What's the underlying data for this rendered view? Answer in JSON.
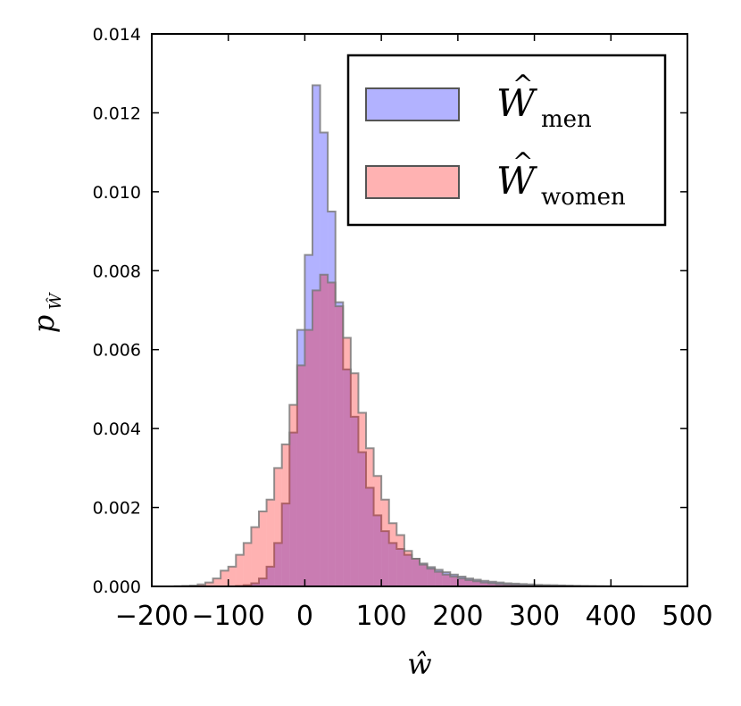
{
  "chart_data": {
    "type": "histogram",
    "title": "",
    "xlabel": "ŵ",
    "ylabel": "p",
    "ylabel_subscript": "Ŵ",
    "xlim": [
      -200,
      500
    ],
    "ylim": [
      0,
      0.014
    ],
    "x_ticks": [
      -200,
      -100,
      0,
      100,
      200,
      300,
      400,
      500
    ],
    "x_tick_labels": [
      "−200",
      "−100",
      "0",
      "100",
      "200",
      "300",
      "400",
      "500"
    ],
    "y_ticks": [
      0,
      0.002,
      0.004,
      0.006,
      0.008,
      0.01,
      0.012,
      0.014
    ],
    "y_tick_labels": [
      "0.000",
      "0.002",
      "0.004",
      "0.006",
      "0.008",
      "0.010",
      "0.012",
      "0.014"
    ],
    "legend_position": "top-right",
    "bin_edges": [
      -200,
      -190,
      -180,
      -170,
      -160,
      -150,
      -140,
      -130,
      -120,
      -110,
      -100,
      -90,
      -80,
      -70,
      -60,
      -50,
      -40,
      -30,
      -20,
      -10,
      0,
      10,
      20,
      30,
      40,
      50,
      60,
      70,
      80,
      90,
      100,
      110,
      120,
      130,
      140,
      150,
      160,
      170,
      180,
      190,
      200,
      210,
      220,
      230,
      240,
      250,
      260,
      270,
      280,
      290,
      300,
      310,
      320,
      330,
      340,
      350,
      360,
      370,
      380,
      390,
      400,
      410,
      420,
      430,
      440,
      450,
      460,
      470,
      480,
      490,
      500
    ],
    "series": [
      {
        "name": "men",
        "legend_label": "W",
        "legend_subscript": "men",
        "color": "#0000ff",
        "opacity": 0.3,
        "values": [
          0,
          0,
          0,
          0,
          0,
          0,
          0,
          0,
          0,
          0,
          0,
          1e-05,
          3e-05,
          8e-05,
          0.0002,
          0.0005,
          0.0011,
          0.0021,
          0.0039,
          0.0065,
          0.0084,
          0.0127,
          0.0115,
          0.0095,
          0.0072,
          0.0055,
          0.0043,
          0.0034,
          0.0025,
          0.0018,
          0.0014,
          0.0011,
          0.00095,
          0.0008,
          0.0007,
          0.00058,
          0.00049,
          0.00042,
          0.00036,
          0.0003,
          0.00025,
          0.0002,
          0.00017,
          0.00014,
          0.00012,
          0.0001,
          8e-05,
          7e-05,
          6e-05,
          5e-05,
          4e-05,
          3.5e-05,
          3e-05,
          2.5e-05,
          2e-05,
          1.5e-05,
          1e-05,
          8e-06,
          6e-06,
          5e-06,
          4e-06,
          3e-06,
          2e-06,
          2e-06,
          1e-06,
          1e-06,
          0,
          0,
          0,
          0
        ]
      },
      {
        "name": "women",
        "legend_label": "W",
        "legend_subscript": "women",
        "color": "#ff0000",
        "opacity": 0.3,
        "values": [
          0,
          0,
          0,
          5e-06,
          1e-05,
          2e-05,
          5e-05,
          0.0001,
          0.0002,
          0.0004,
          0.0005,
          0.0008,
          0.0011,
          0.0015,
          0.0019,
          0.0022,
          0.003,
          0.0036,
          0.0046,
          0.0056,
          0.0065,
          0.0075,
          0.0079,
          0.0077,
          0.0071,
          0.0063,
          0.0054,
          0.0044,
          0.0035,
          0.0028,
          0.0022,
          0.0016,
          0.0013,
          0.0009,
          0.0007,
          0.00055,
          0.00045,
          0.00037,
          0.0003,
          0.00025,
          0.0002,
          0.00016,
          0.00013,
          0.0001,
          8e-05,
          6e-05,
          5e-05,
          4e-05,
          3e-05,
          2.5e-05,
          2e-05,
          1.5e-05,
          1e-05,
          8e-06,
          6e-06,
          5e-06,
          4e-06,
          3e-06,
          2e-06,
          1e-06,
          0,
          0,
          0,
          0,
          0,
          0,
          0,
          0,
          0,
          0
        ]
      }
    ]
  }
}
